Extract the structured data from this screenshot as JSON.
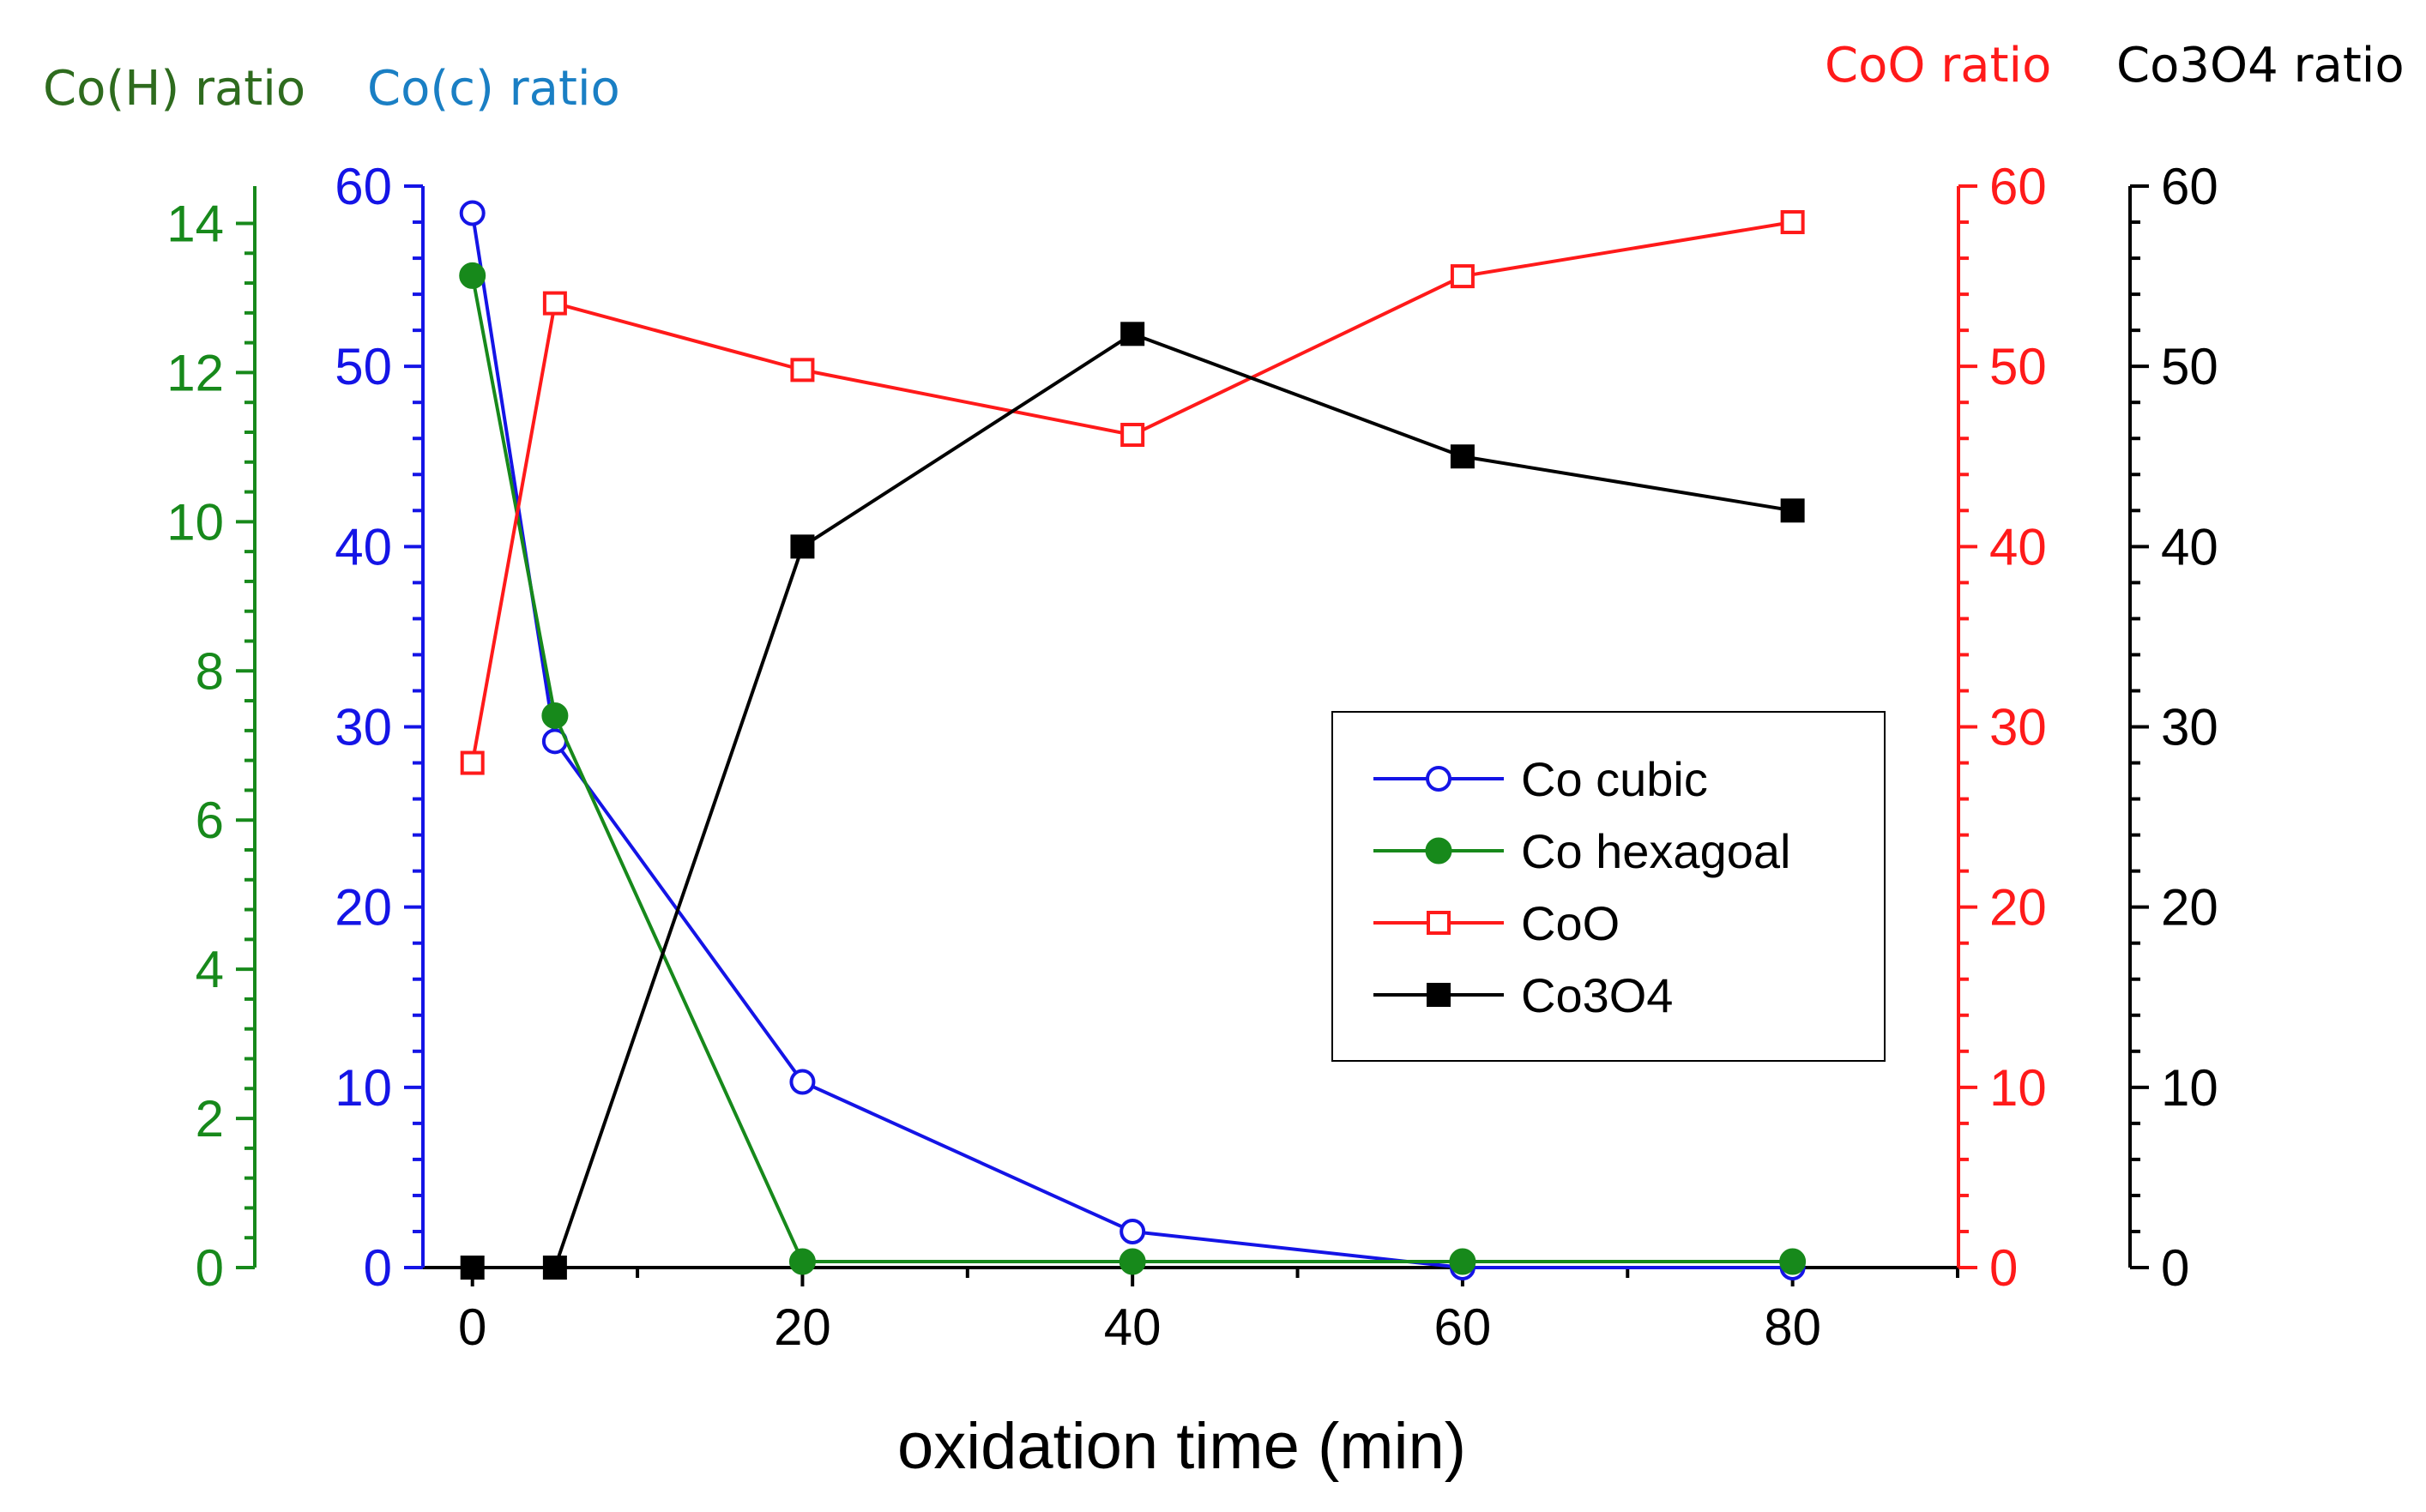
{
  "chart_data": {
    "type": "line",
    "xlabel": "oxidation time (min)",
    "x": [
      0,
      5,
      20,
      40,
      60,
      80
    ],
    "x_ticks": [
      0,
      20,
      40,
      60,
      80
    ],
    "xlim": [
      -3,
      90
    ],
    "axes": [
      {
        "id": "coh",
        "title": "Co(H) ratio",
        "color": "#17891b",
        "ticks": [
          0,
          2,
          4,
          6,
          8,
          10,
          12,
          14
        ],
        "ylim": [
          0,
          14.5
        ]
      },
      {
        "id": "coc",
        "title": "Co(c) ratio",
        "color": "#1414e6",
        "ticks": [
          0,
          10,
          20,
          30,
          40,
          50,
          60
        ],
        "ylim": [
          0,
          60
        ]
      },
      {
        "id": "coo",
        "title": "CoO ratio",
        "color": "#ff1a1a",
        "ticks": [
          0,
          10,
          20,
          30,
          40,
          50,
          60
        ],
        "ylim": [
          0,
          60
        ]
      },
      {
        "id": "co3o4",
        "title": "Co3O4 ratio",
        "color": "#000000",
        "ticks": [
          0,
          10,
          20,
          30,
          40,
          50,
          60
        ],
        "ylim": [
          0,
          60
        ]
      }
    ],
    "series": [
      {
        "name": "Co cubic",
        "axis": "coc",
        "color": "#1414e6",
        "marker": "circle-open",
        "values": [
          58.5,
          29.2,
          10.3,
          2.0,
          0.0,
          0.0
        ]
      },
      {
        "name": "Co hexagoal",
        "axis": "coh",
        "color": "#17891b",
        "marker": "circle-filled",
        "values": [
          13.3,
          7.4,
          0.08,
          0.08,
          0.08,
          0.08
        ]
      },
      {
        "name": "CoO",
        "axis": "coo",
        "color": "#ff1a1a",
        "marker": "square-open",
        "values": [
          28.0,
          53.5,
          49.8,
          46.2,
          55.0,
          58.0
        ]
      },
      {
        "name": "Co3O4",
        "axis": "co3o4",
        "color": "#000000",
        "marker": "square-filled",
        "values": [
          0.0,
          0.0,
          40.0,
          51.8,
          45.0,
          42.0
        ]
      }
    ],
    "legend": {
      "position": "center-right"
    }
  }
}
